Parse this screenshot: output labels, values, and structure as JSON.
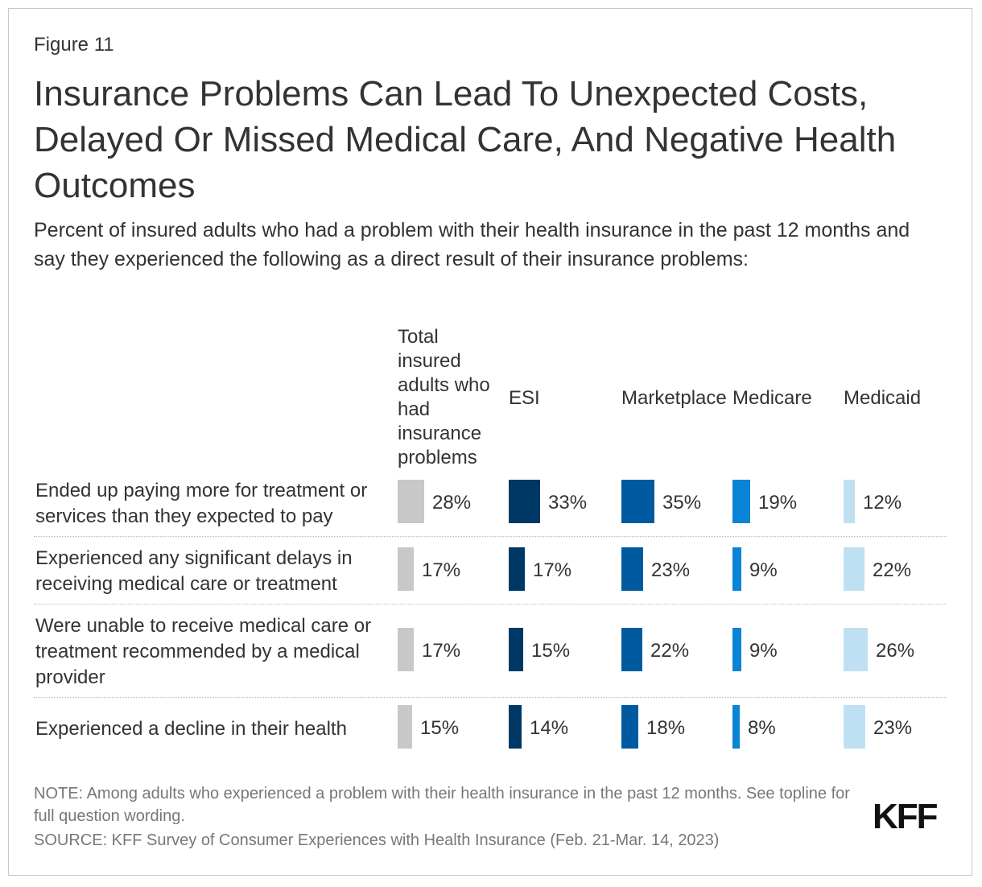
{
  "figure_label": "Figure 11",
  "title": "Insurance Problems Can Lead To Unexpected Costs, Delayed Or Missed Medical Care, And Negative Health Outcomes",
  "subtitle": "Percent of insured adults who had a problem with their health insurance in the past 12 months and say they experienced the following as a direct result of their insurance problems:",
  "note": "NOTE: Among adults who experienced a problem with their health insurance in the past 12 months. See topline for full question wording.",
  "source": "SOURCE: KFF Survey of Consumer Experiences with Health Insurance (Feb. 21-Mar. 14, 2023)",
  "logo_text": "KFF",
  "chart_data": {
    "type": "table",
    "title": "Insurance Problems Can Lead To Unexpected Costs, Delayed Or Missed Medical Care, And Negative Health Outcomes",
    "columns": [
      {
        "name": "Total insured adults who had insurance problems",
        "color": "#c8c8c8"
      },
      {
        "name": "ESI",
        "color": "#003865"
      },
      {
        "name": "Marketplace",
        "color": "#005aa0"
      },
      {
        "name": "Medicare",
        "color": "#0a84d6"
      },
      {
        "name": "Medicaid",
        "color": "#bfe0f2"
      }
    ],
    "rows": [
      {
        "label": "Ended up paying more for treatment or services than they expected to pay",
        "values": [
          28,
          33,
          35,
          19,
          12
        ]
      },
      {
        "label": "Experienced any significant delays in receiving medical care or treatment",
        "values": [
          17,
          17,
          23,
          9,
          22
        ]
      },
      {
        "label": "Were unable to receive medical care or treatment recommended by a medical provider",
        "values": [
          17,
          15,
          22,
          9,
          26
        ]
      },
      {
        "label": "Experienced a decline in their health",
        "values": [
          15,
          14,
          18,
          8,
          23
        ]
      }
    ],
    "value_suffix": "%"
  }
}
